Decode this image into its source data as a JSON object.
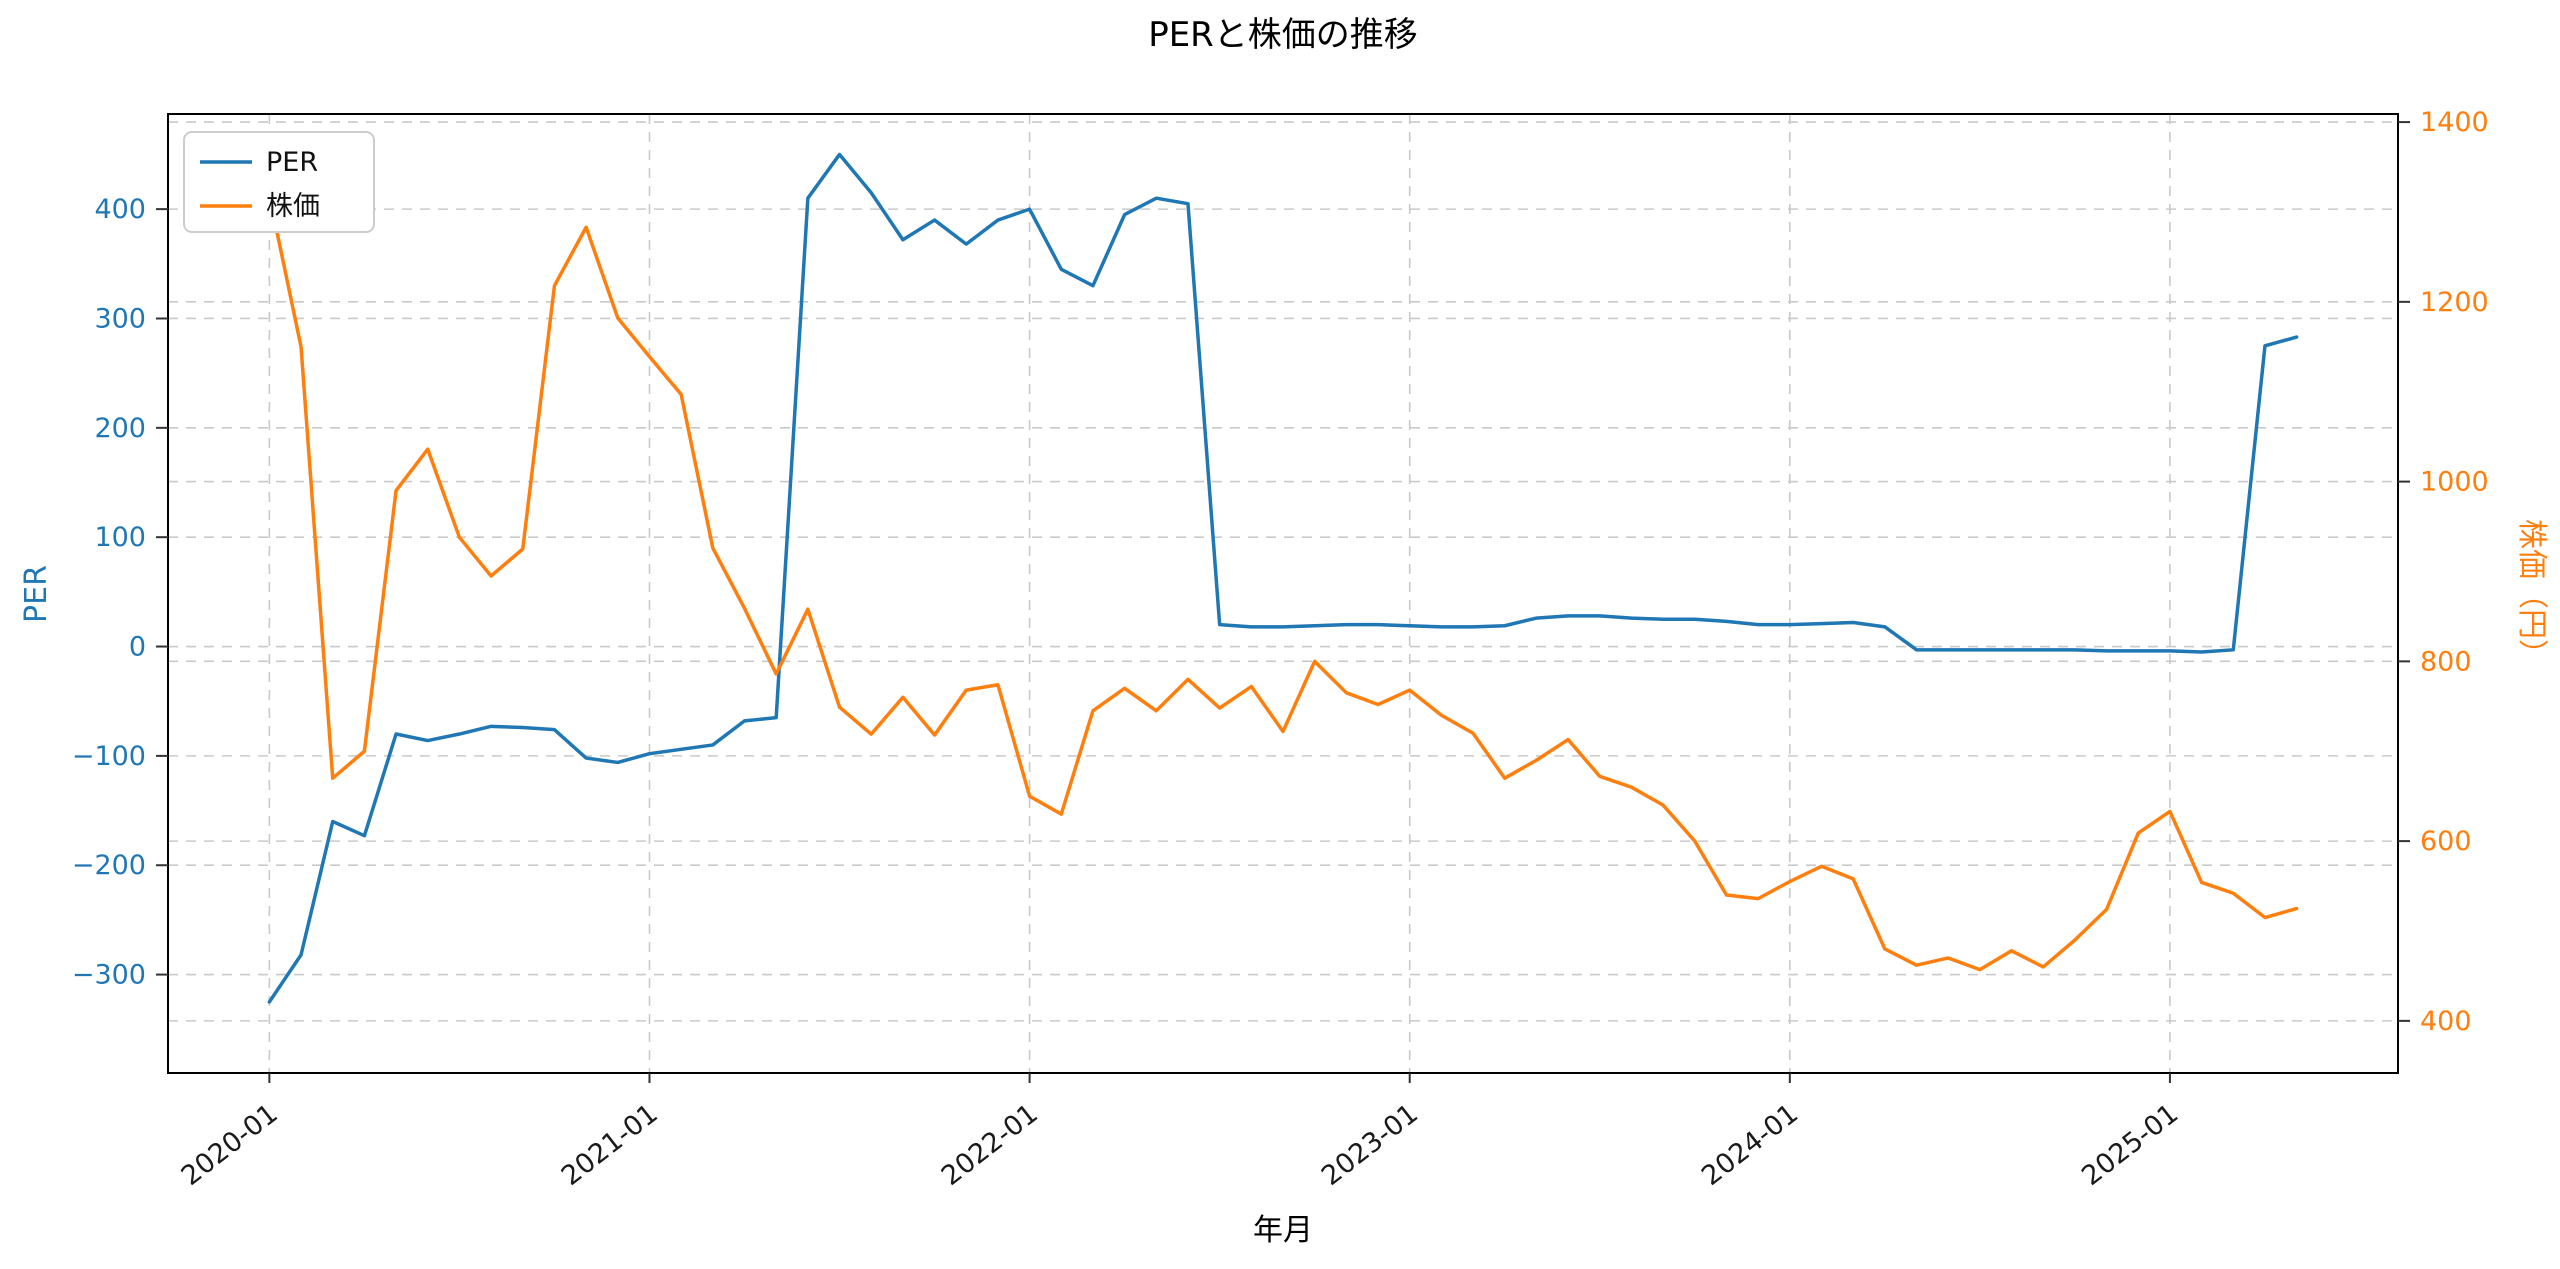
{
  "chart_data": {
    "type": "line",
    "title": "PERと株価の推移",
    "xlabel": "年月",
    "x": [
      "2020-01",
      "2020-02",
      "2020-03",
      "2020-04",
      "2020-05",
      "2020-06",
      "2020-07",
      "2020-08",
      "2020-09",
      "2020-10",
      "2020-11",
      "2020-12",
      "2021-01",
      "2021-02",
      "2021-03",
      "2021-04",
      "2021-05",
      "2021-06",
      "2021-07",
      "2021-08",
      "2021-09",
      "2021-10",
      "2021-11",
      "2021-12",
      "2022-01",
      "2022-02",
      "2022-03",
      "2022-04",
      "2022-05",
      "2022-06",
      "2022-07",
      "2022-08",
      "2022-09",
      "2022-10",
      "2022-11",
      "2022-12",
      "2023-01",
      "2023-02",
      "2023-03",
      "2023-04",
      "2023-05",
      "2023-06",
      "2023-07",
      "2023-08",
      "2023-09",
      "2023-10",
      "2023-11",
      "2023-12",
      "2024-01",
      "2024-02",
      "2024-03",
      "2024-04",
      "2024-05",
      "2024-06",
      "2024-07",
      "2024-08",
      "2024-09",
      "2024-10",
      "2024-11",
      "2024-12",
      "2025-01",
      "2025-02",
      "2025-03",
      "2025-04",
      "2025-05"
    ],
    "x_ticks": [
      "2020-01",
      "2021-01",
      "2022-01",
      "2023-01",
      "2024-01",
      "2025-01"
    ],
    "axes": {
      "left": {
        "label": "PER",
        "color": "#1f77b4",
        "ticks": [
          -300,
          -200,
          -100,
          0,
          100,
          200,
          300,
          400
        ],
        "lim": [
          -390,
          487
        ]
      },
      "right": {
        "label": "株価（円）",
        "color": "#ff7f0e",
        "ticks": [
          400,
          600,
          800,
          1000,
          1200,
          1400
        ],
        "lim": [
          342,
          1409
        ]
      }
    },
    "series": [
      {
        "name": "PER",
        "axis": "left",
        "color": "#1f77b4",
        "values": [
          -325,
          -282,
          -160,
          -173,
          -80,
          -86,
          -80,
          -73,
          -74,
          -76,
          -102,
          -106,
          -98,
          -94,
          -90,
          -68,
          -65,
          410,
          450,
          415,
          372,
          390,
          368,
          390,
          400,
          345,
          330,
          395,
          410,
          405,
          20,
          18,
          18,
          19,
          20,
          20,
          19,
          18,
          18,
          19,
          26,
          28,
          28,
          26,
          25,
          25,
          23,
          20,
          20,
          21,
          22,
          18,
          -3,
          -3,
          -3,
          -3,
          -3,
          -3,
          -4,
          -4,
          -4,
          -5,
          -3,
          275,
          283
        ]
      },
      {
        "name": "株価",
        "axis": "right",
        "color": "#ff7f0e",
        "values": [
          1318,
          1150,
          670,
          700,
          990,
          1036,
          938,
          895,
          925,
          1218,
          1283,
          1182,
          1139,
          1097,
          926,
          859,
          786,
          858,
          749,
          719,
          760,
          718,
          768,
          774,
          650,
          630,
          745,
          770,
          745,
          780,
          748,
          772,
          722,
          800,
          765,
          752,
          768,
          740,
          720,
          670,
          690,
          713,
          672,
          660,
          640,
          600,
          540,
          536,
          555,
          572,
          558,
          480,
          462,
          470,
          457,
          478,
          460,
          490,
          524,
          609,
          633,
          554,
          542,
          515,
          525
        ]
      }
    ],
    "legend": {
      "position": "upper-left",
      "entries": [
        "PER",
        "株価"
      ]
    },
    "grid": {
      "show": true,
      "style": "dashed",
      "color": "#c9c9c9"
    }
  }
}
